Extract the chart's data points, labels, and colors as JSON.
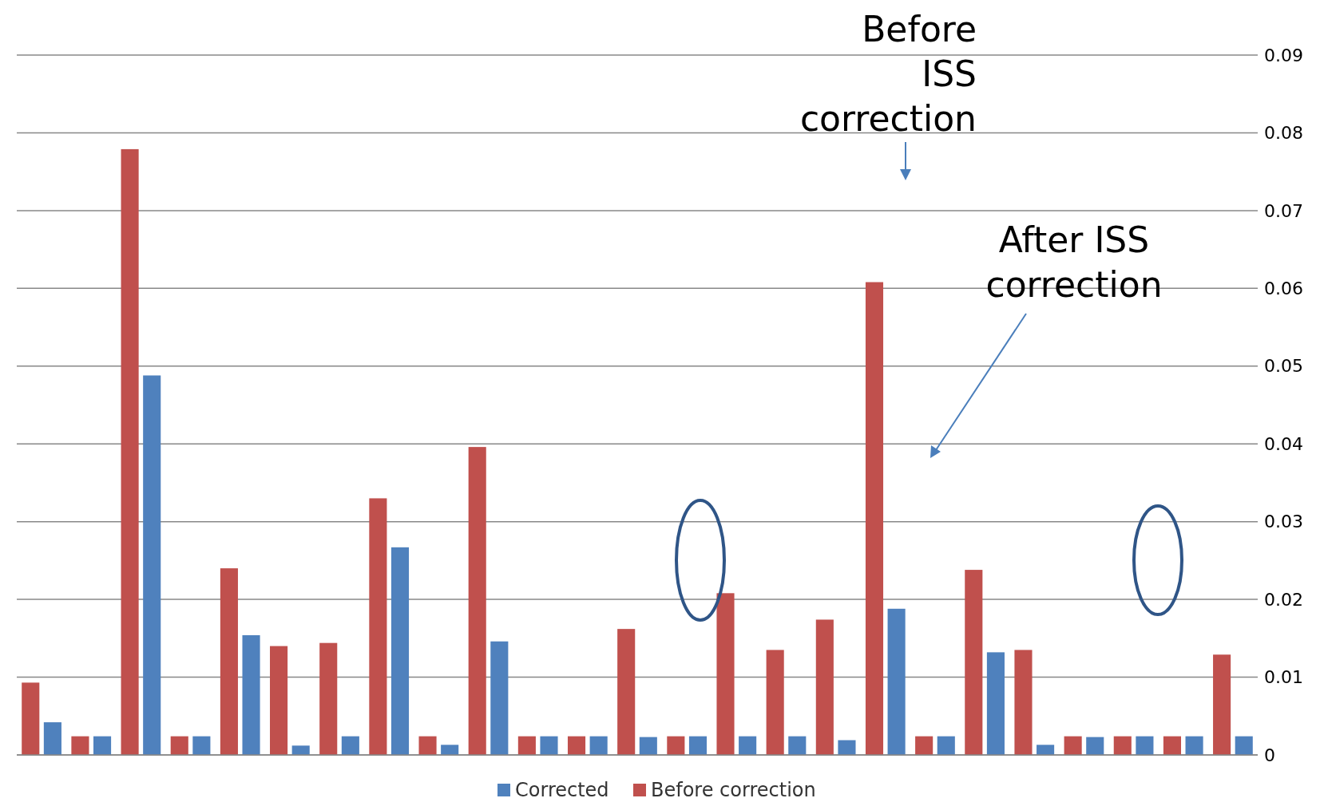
{
  "chart_data": {
    "type": "bar",
    "categories": [
      null,
      null,
      null,
      null,
      null,
      null,
      null,
      null,
      null,
      null,
      null,
      null,
      null,
      null,
      null,
      null,
      null,
      null,
      null,
      null,
      null,
      null,
      null,
      null,
      null
    ],
    "series": [
      {
        "name": "Before correction",
        "color": "#c0504d",
        "values": [
          0.0093,
          0.0024,
          0.0779,
          0.0024,
          0.024,
          0.014,
          0.0144,
          0.033,
          0.0024,
          0.0396,
          0.0024,
          0.0024,
          0.0162,
          0.0024,
          0.0208,
          0.0135,
          0.0174,
          0.0608,
          0.0024,
          0.0238,
          0.0135,
          0.0024,
          0.0024,
          0.0024,
          0.0129
        ]
      },
      {
        "name": "Corrected",
        "color": "#4f81bd",
        "values": [
          0.0042,
          0.0024,
          0.0488,
          0.0024,
          0.0154,
          0.0012,
          0.0024,
          0.0267,
          0.0013,
          0.0146,
          0.0024,
          0.0024,
          0.0023,
          0.0024,
          0.0024,
          0.0024,
          0.0019,
          0.0188,
          0.0024,
          0.0132,
          0.0013,
          0.0023,
          0.0024,
          0.0024,
          0.0024
        ]
      }
    ],
    "ylim": [
      0,
      0.09
    ],
    "yticks": [
      0,
      0.01,
      0.02,
      0.03,
      0.04,
      0.05,
      0.06,
      0.07,
      0.08,
      0.09
    ],
    "grid": "y",
    "legend": "bottom",
    "tick_labels": "y",
    "annotations": [
      "Before ISS correction",
      "After ISS correction"
    ]
  }
}
